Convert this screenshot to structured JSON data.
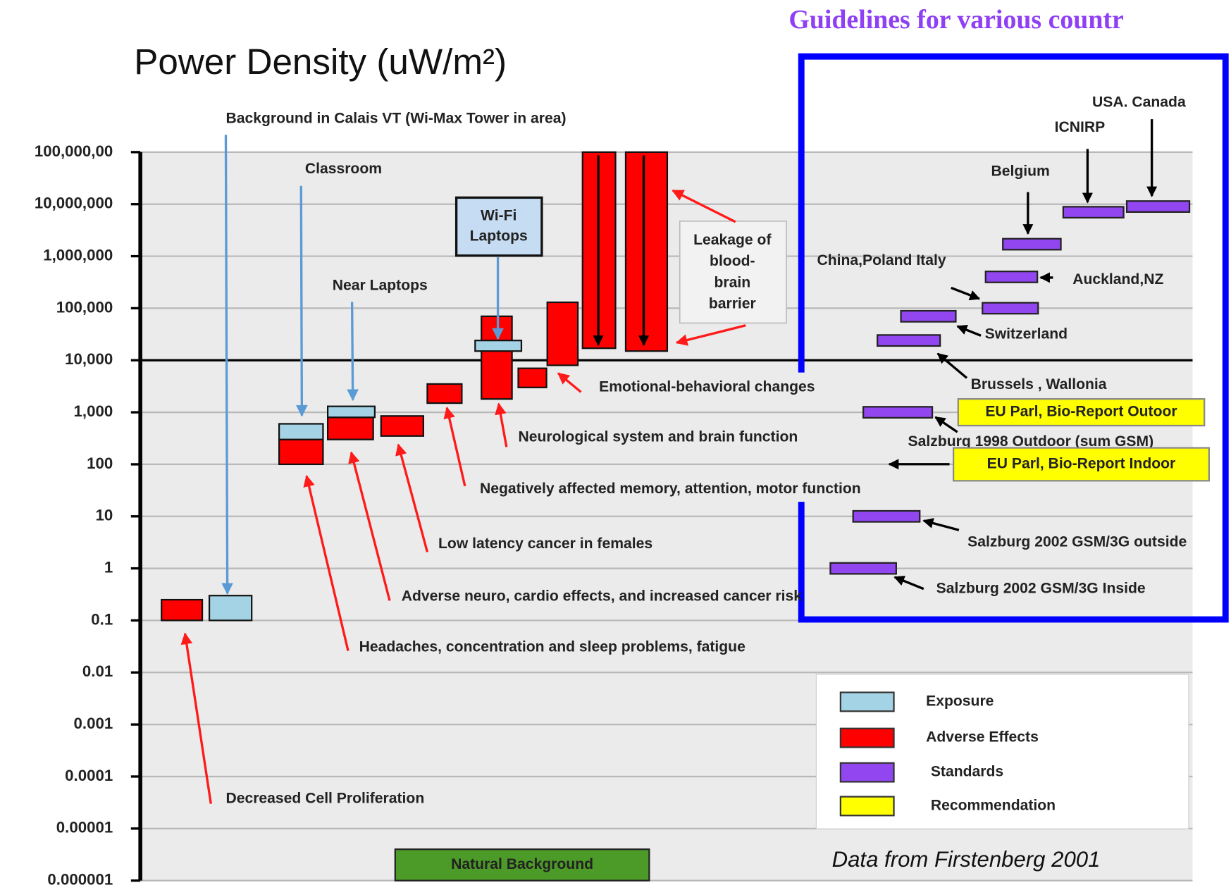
{
  "chart_data": {
    "type": "bar",
    "title": "Power Density (uW/m²)",
    "guidelines_title": "Guidelines for various countr",
    "log_scale": true,
    "grid": true,
    "ylim": [
      1e-06,
      100000000
    ],
    "yticks": [
      {
        "value": 100000000,
        "label": "100,000,00"
      },
      {
        "value": 10000000,
        "label": "10,000,000"
      },
      {
        "value": 1000000,
        "label": "1,000,000"
      },
      {
        "value": 100000,
        "label": "100,000"
      },
      {
        "value": 10000,
        "label": "10,000"
      },
      {
        "value": 1000,
        "label": "1,000"
      },
      100,
      10,
      1,
      0.1,
      0.01,
      0.001,
      0.0001,
      1e-05,
      1e-06
    ],
    "reference_value": 10000,
    "series": [
      {
        "name": "Adverse Effects",
        "color": "#ff0000",
        "low": [
          0.1,
          100,
          300,
          350,
          1500,
          1800,
          3000,
          8000,
          17000,
          15000
        ],
        "high": [
          0.25,
          300,
          800,
          850,
          3500,
          70000,
          7000,
          130000,
          100000000,
          100000000
        ]
      },
      {
        "name": "Exposure",
        "color": "#a3d3e4",
        "low": [
          0.1,
          300,
          800,
          15000
        ],
        "high": [
          0.3,
          600,
          1300,
          24000
        ]
      },
      {
        "name": "Standards",
        "color": "#9146f0",
        "labels": [
          "Salzburg 2002 GSM/3G Inside",
          "Salzburg 2002 GSM/3G outside",
          "Salzburg 1998 Outdoor (sum GSM)",
          "Brussels , Wallonia",
          "Switzerland",
          "China,Poland Italy",
          "Auckland,NZ",
          "Belgium",
          "ICNIRP",
          "USA. Canada"
        ],
        "values": [
          1,
          10,
          1000,
          24000,
          70000,
          100000,
          400000,
          1700000,
          7000000,
          9000000
        ]
      },
      {
        "name": "Recommendation",
        "color": "#ffff00",
        "labels": [
          "EU Parl, Bio-Report Outoor",
          "EU Parl, Bio-Report Indoor"
        ],
        "values": [
          1000,
          100
        ]
      }
    ],
    "annotations": [
      {
        "lines": [
          "Background in Calais VT  (Wi-Max Tower in area)"
        ]
      },
      {
        "lines": [
          "Classroom"
        ]
      },
      {
        "lines": [
          "Wi-Fi",
          "Laptops"
        ]
      },
      {
        "lines": [
          "Near Laptops"
        ]
      },
      {
        "lines": [
          "Leakage of",
          "blood-",
          "brain",
          "barrier"
        ]
      },
      {
        "lines": [
          "Emotional-behavioral changes"
        ]
      },
      {
        "lines": [
          "Neurological system and brain function"
        ]
      },
      {
        "lines": [
          "Negatively affected memory, attention, motor function"
        ]
      },
      {
        "lines": [
          "Low latency cancer in females"
        ]
      },
      {
        "lines": [
          "Adverse neuro, cardio effects, and increased cancer risk"
        ]
      },
      {
        "lines": [
          "Headaches, concentration and sleep problems, fatigue"
        ]
      },
      {
        "lines": [
          "Decreased Cell Proliferation"
        ]
      }
    ],
    "natural_background": {
      "label": "Natural Background",
      "color": "#4c9a28",
      "low": 1e-06,
      "high": 4e-06
    },
    "source": "Data from Firstenberg 2001"
  }
}
